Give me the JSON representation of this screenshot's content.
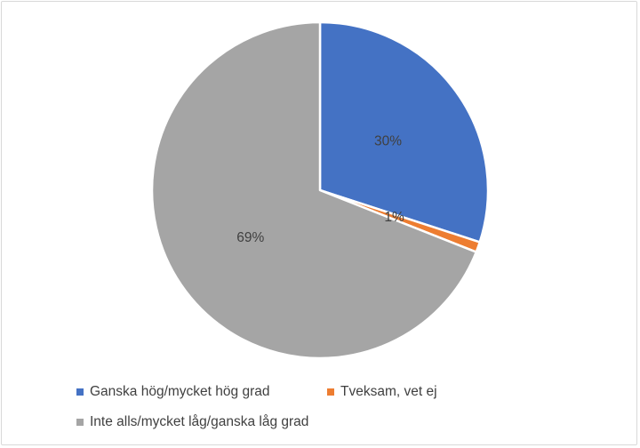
{
  "chart_data": {
    "type": "pie",
    "title": "",
    "categories": [
      "Ganska hög/mycket hög grad",
      "Tveksam, vet ej",
      "Inte alls/mycket låg/ganska låg grad"
    ],
    "values": [
      30,
      1,
      69
    ],
    "data_labels": [
      "30%",
      "1%",
      "69%"
    ],
    "colors": [
      "#4472C4",
      "#ED7D31",
      "#A5A5A5"
    ],
    "legend_placement": "bottom"
  }
}
